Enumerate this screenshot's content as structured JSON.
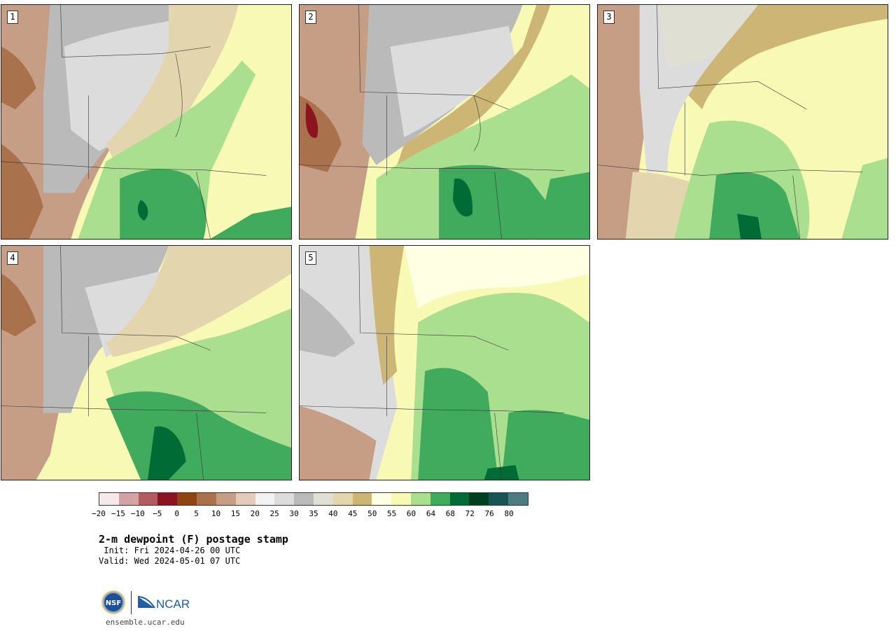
{
  "panels": [
    {
      "label": "1"
    },
    {
      "label": "2"
    },
    {
      "label": "3"
    },
    {
      "label": "4"
    },
    {
      "label": "5"
    }
  ],
  "colorbar": {
    "colors": [
      "#f5e9ea",
      "#d3a2a6",
      "#b15c61",
      "#8c1420",
      "#8e4512",
      "#a9714c",
      "#c69e85",
      "#e4cab9",
      "#f2f2f2",
      "#dcdcdc",
      "#bababa",
      "#e0dfd4",
      "#e3d6af",
      "#cdb675",
      "#ffffe4",
      "#f7f9b5",
      "#abdf90",
      "#41ab5d",
      "#006b34",
      "#003f20",
      "#1b5454",
      "#4e7b7f"
    ],
    "tick_labels": [
      "−20",
      "−15",
      "−10",
      "−5",
      "0",
      "5",
      "10",
      "15",
      "20",
      "25",
      "30",
      "35",
      "40",
      "45",
      "50",
      "55",
      "60",
      "64",
      "68",
      "72",
      "76",
      "80"
    ]
  },
  "title": "2-m dewpoint (F) postage stamp",
  "init_line": " Init: Fri 2024-04-26 00 UTC",
  "valid_line": "Valid: Wed 2024-05-01 07 UTC",
  "logos": {
    "nsf": "NSF",
    "ncar": "NCAR"
  },
  "site_url": "ensemble.ucar.edu"
}
